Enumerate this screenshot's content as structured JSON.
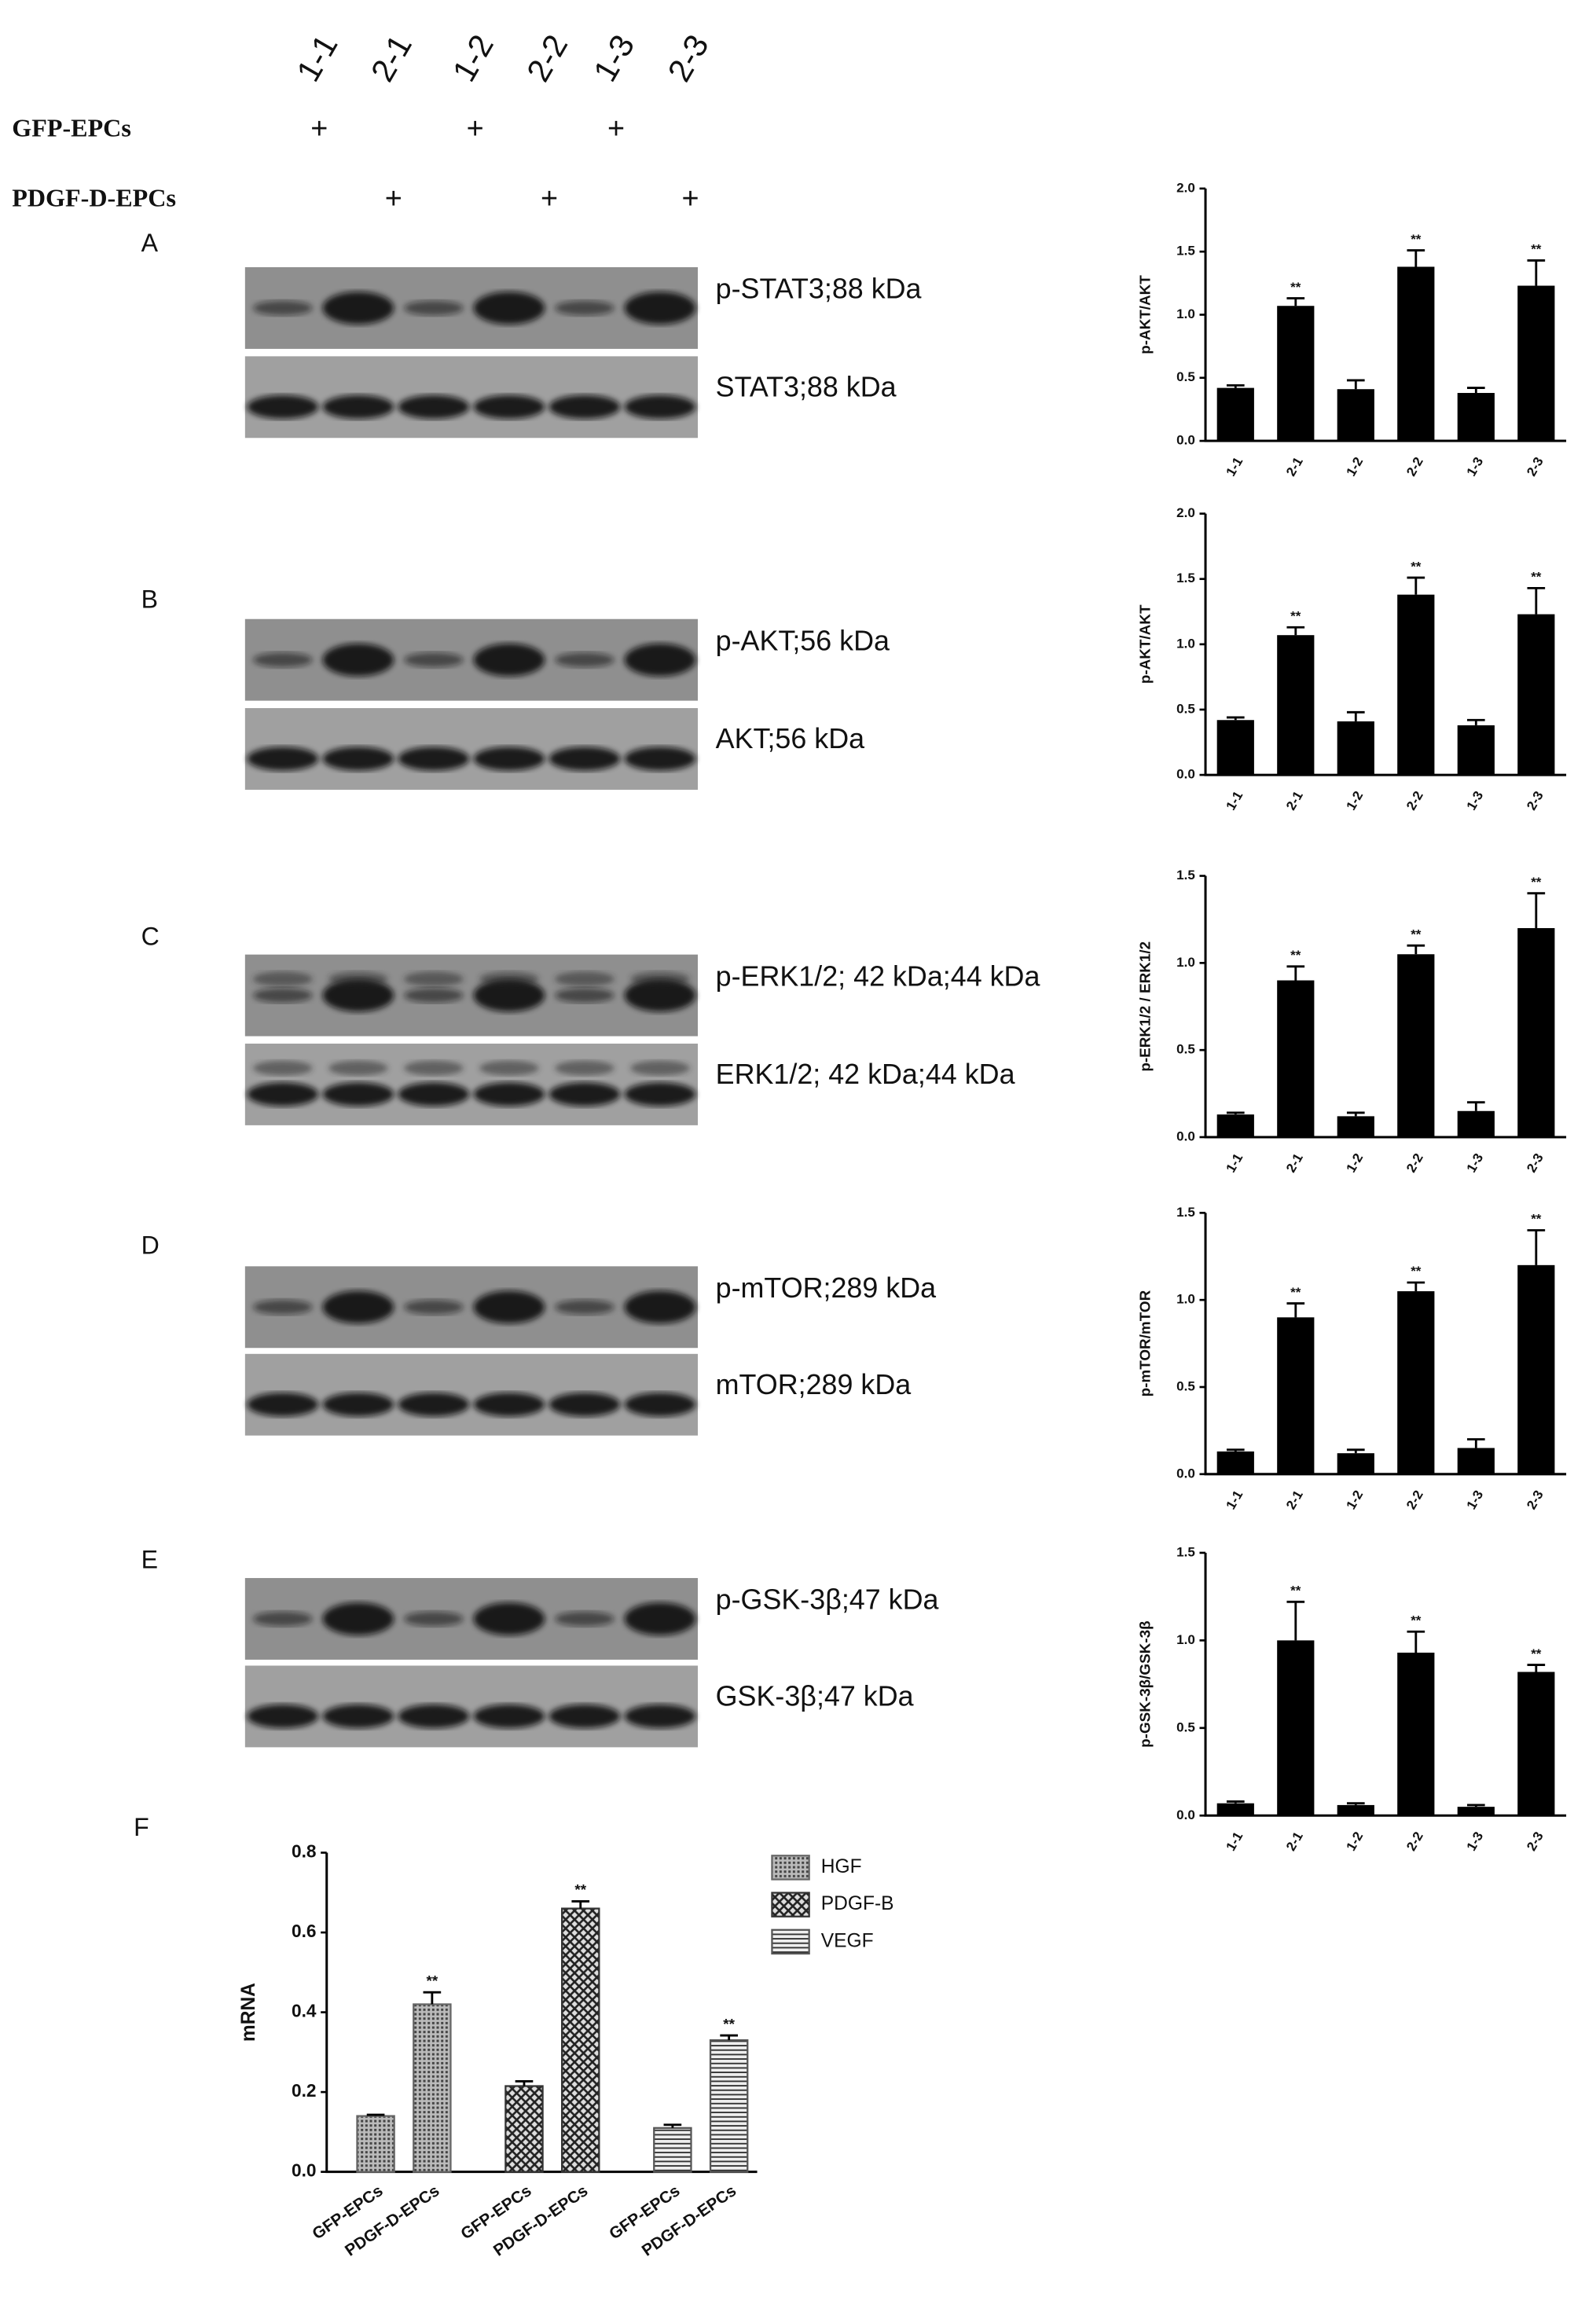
{
  "lanes": [
    "1-1",
    "2-1",
    "1-2",
    "2-2",
    "1-3",
    "2-3"
  ],
  "treatments": [
    {
      "name": "GFP-EPCs",
      "marks": [
        "+",
        null,
        "+",
        null,
        "+",
        null
      ]
    },
    {
      "name": "PDGF-D-EPCs",
      "marks": [
        null,
        "+",
        null,
        "+",
        null,
        "+"
      ]
    }
  ],
  "panels": [
    "A",
    "B",
    "C",
    "D",
    "E",
    "F"
  ],
  "blots": [
    {
      "upper": "p-STAT3;88 kDa",
      "lower": "STAT3;88 kDa"
    },
    {
      "upper": "p-AKT;56 kDa",
      "lower": "AKT;56 kDa"
    },
    {
      "upper": "p-ERK1/2; 42 kDa;44 kDa",
      "lower": "ERK1/2; 42 kDa;44 kDa"
    },
    {
      "upper": "p-mTOR;289 kDa",
      "lower": "mTOR;289 kDa"
    },
    {
      "upper": "p-GSK-3β;47 kDa",
      "lower": "GSK-3β;47 kDa"
    }
  ],
  "chart_data": [
    {
      "type": "bar",
      "ylabel": "p-AKT/AKT",
      "categories": [
        "1-1",
        "2-1",
        "1-2",
        "2-2",
        "1-3",
        "2-3"
      ],
      "values": [
        0.42,
        1.07,
        0.41,
        1.38,
        0.38,
        1.23
      ],
      "errors": [
        0.02,
        0.06,
        0.07,
        0.13,
        0.04,
        0.2
      ],
      "annotations": [
        null,
        "**",
        null,
        "**",
        null,
        "**"
      ],
      "color": "#000000",
      "ylim": [
        0,
        2
      ],
      "yticks": [
        {
          "value": 0,
          "label": "0.0"
        },
        {
          "value": 0.5,
          "label": "0.5"
        },
        {
          "value": 1,
          "label": "1.0"
        },
        {
          "value": 1.5,
          "label": "1.5"
        },
        {
          "value": 2,
          "label": "2.0"
        }
      ]
    },
    {
      "type": "bar",
      "ylabel": "p-AKT/AKT",
      "categories": [
        "1-1",
        "2-1",
        "1-2",
        "2-2",
        "1-3",
        "2-3"
      ],
      "values": [
        0.42,
        1.07,
        0.41,
        1.38,
        0.38,
        1.23
      ],
      "errors": [
        0.02,
        0.06,
        0.07,
        0.13,
        0.04,
        0.2
      ],
      "annotations": [
        null,
        "**",
        null,
        "**",
        null,
        "**"
      ],
      "color": "#000000",
      "ylim": [
        0,
        2
      ],
      "yticks": [
        {
          "value": 0,
          "label": "0.0"
        },
        {
          "value": 0.5,
          "label": "0.5"
        },
        {
          "value": 1,
          "label": "1.0"
        },
        {
          "value": 1.5,
          "label": "1.5"
        },
        {
          "value": 2,
          "label": "2.0"
        }
      ]
    },
    {
      "type": "bar",
      "ylabel": "p-ERK1/2 / ERK1/2",
      "categories": [
        "1-1",
        "2-1",
        "1-2",
        "2-2",
        "1-3",
        "2-3"
      ],
      "values": [
        0.13,
        0.9,
        0.12,
        1.05,
        0.15,
        1.2
      ],
      "errors": [
        0.01,
        0.08,
        0.02,
        0.05,
        0.05,
        0.2
      ],
      "annotations": [
        null,
        "**",
        null,
        "**",
        null,
        "**"
      ],
      "color": "#000000",
      "ylim": [
        0,
        1.5
      ],
      "yticks": [
        {
          "value": 0,
          "label": "0.0"
        },
        {
          "value": 0.5,
          "label": "0.5"
        },
        {
          "value": 1,
          "label": "1.0"
        },
        {
          "value": 1.5,
          "label": "1.5"
        }
      ]
    },
    {
      "type": "bar",
      "ylabel": "p-mTOR/mTOR",
      "categories": [
        "1-1",
        "2-1",
        "1-2",
        "2-2",
        "1-3",
        "2-3"
      ],
      "values": [
        0.13,
        0.9,
        0.12,
        1.05,
        0.15,
        1.2
      ],
      "errors": [
        0.01,
        0.08,
        0.02,
        0.05,
        0.05,
        0.2
      ],
      "annotations": [
        null,
        "**",
        null,
        "**",
        null,
        "**"
      ],
      "color": "#000000",
      "ylim": [
        0,
        1.5
      ],
      "yticks": [
        {
          "value": 0,
          "label": "0.0"
        },
        {
          "value": 0.5,
          "label": "0.5"
        },
        {
          "value": 1,
          "label": "1.0"
        },
        {
          "value": 1.5,
          "label": "1.5"
        }
      ]
    },
    {
      "type": "bar",
      "ylabel": "p-GSK-3β/GSK-3β",
      "categories": [
        "1-1",
        "2-1",
        "1-2",
        "2-2",
        "1-3",
        "2-3"
      ],
      "values": [
        0.07,
        1.0,
        0.06,
        0.93,
        0.05,
        0.82
      ],
      "errors": [
        0.01,
        0.22,
        0.01,
        0.12,
        0.01,
        0.04
      ],
      "annotations": [
        null,
        "**",
        null,
        "**",
        null,
        "**"
      ],
      "color": "#000000",
      "ylim": [
        0,
        1.5
      ],
      "yticks": [
        {
          "value": 0,
          "label": "0.0"
        },
        {
          "value": 0.5,
          "label": "0.5"
        },
        {
          "value": 1,
          "label": "1.0"
        },
        {
          "value": 1.5,
          "label": "1.5"
        }
      ]
    },
    {
      "type": "grouped-bar",
      "ylabel": "mRNA",
      "categories": [
        "GFP-EPCs",
        "PDGF-D-EPCs"
      ],
      "series": [
        {
          "name": "HGF",
          "pattern": "dots",
          "color": "#666666",
          "values": [
            0.14,
            0.42
          ],
          "errors": [
            0.003,
            0.03
          ],
          "annotations": [
            null,
            "**"
          ]
        },
        {
          "name": "PDGF-B",
          "pattern": "crosshatch",
          "color": "#333333",
          "values": [
            0.215,
            0.66
          ],
          "errors": [
            0.012,
            0.018
          ],
          "annotations": [
            null,
            "**"
          ]
        },
        {
          "name": "VEGF",
          "pattern": "horizontal",
          "color": "#555555",
          "values": [
            0.11,
            0.33
          ],
          "errors": [
            0.008,
            0.012
          ],
          "annotations": [
            null,
            "**"
          ]
        }
      ],
      "ylim": [
        0,
        0.8
      ],
      "yticks": [
        {
          "value": 0,
          "label": "0.0"
        },
        {
          "value": 0.2,
          "label": "0.2"
        },
        {
          "value": 0.4,
          "label": "0.4"
        },
        {
          "value": 0.6,
          "label": "0.6"
        },
        {
          "value": 0.8,
          "label": "0.8"
        }
      ]
    }
  ]
}
